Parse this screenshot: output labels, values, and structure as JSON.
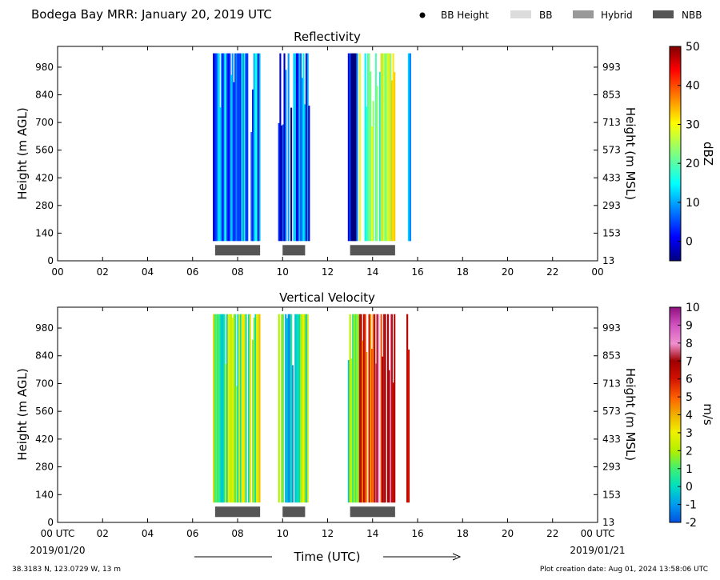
{
  "header": {
    "title": "Bodega Bay MRR:  January 20, 2019 UTC",
    "legend": [
      {
        "label": "BB Height",
        "marker": "dot",
        "color": "#000000"
      },
      {
        "label": "BB",
        "marker": "patch",
        "color": "#dcdcdc"
      },
      {
        "label": "Hybrid",
        "marker": "patch",
        "color": "#999999"
      },
      {
        "label": "NBB",
        "marker": "patch",
        "color": "#555555"
      }
    ]
  },
  "footer": {
    "location": "38.3183 N, 123.0729 W, 13 m",
    "creation": "Plot creation date: Aug 01, 2024 13:58:06 UTC",
    "xlabel": "Time (UTC)",
    "start_date": "2019/01/20",
    "end_date": "2019/01/21"
  },
  "chart_data": [
    {
      "type": "heatmap",
      "title": "Reflectivity",
      "ylabel": "Height (m AGL)",
      "ylabel_right": "Height (m MSL)",
      "xlim": [
        0,
        24
      ],
      "ylim": [
        0,
        1085
      ],
      "x_ticks": [
        "00",
        "02",
        "04",
        "06",
        "08",
        "10",
        "12",
        "14",
        "16",
        "18",
        "20",
        "22",
        "00"
      ],
      "y_ticks": [
        0,
        140,
        280,
        420,
        560,
        700,
        840,
        980
      ],
      "y_ticks_right": [
        13,
        153,
        293,
        433,
        573,
        713,
        853,
        993
      ],
      "colorbar": {
        "label": "dBZ",
        "min": -5,
        "max": 50,
        "ticks": [
          0,
          10,
          20,
          30,
          40,
          50
        ],
        "colormap": "jet"
      },
      "nbb_periods": [
        [
          7.0,
          9.0
        ],
        [
          10.0,
          11.0
        ],
        [
          13.0,
          15.0
        ]
      ],
      "data_height_range": [
        100,
        1050
      ],
      "precip_periods": [
        {
          "start": 6.9,
          "end": 9.0,
          "typical": 8
        },
        {
          "start": 9.8,
          "end": 11.2,
          "typical": 4
        },
        {
          "start": 12.9,
          "end": 13.4,
          "typical": 0
        },
        {
          "start": 13.4,
          "end": 15.0,
          "typical": 24
        },
        {
          "start": 15.5,
          "end": 15.7,
          "typical": 4
        }
      ]
    },
    {
      "type": "heatmap",
      "title": "Vertical Velocity",
      "ylabel": "Height (m AGL)",
      "ylabel_right": "Height (m MSL)",
      "xlim": [
        0,
        24
      ],
      "ylim": [
        0,
        1085
      ],
      "x_ticks": [
        "00 UTC",
        "02",
        "04",
        "06",
        "08",
        "10",
        "12",
        "14",
        "16",
        "18",
        "20",
        "22",
        "00 UTC"
      ],
      "y_ticks": [
        0,
        140,
        280,
        420,
        560,
        700,
        840,
        980
      ],
      "y_ticks_right": [
        13,
        153,
        293,
        433,
        573,
        713,
        853,
        993
      ],
      "colorbar": {
        "label": "m/s",
        "min": -2,
        "max": 10,
        "ticks": [
          -2,
          -1,
          0,
          1,
          2,
          3,
          4,
          5,
          6,
          7,
          8,
          9,
          10
        ],
        "colormap": "velocity"
      },
      "nbb_periods": [
        [
          7.0,
          9.0
        ],
        [
          10.0,
          11.0
        ],
        [
          13.0,
          15.0
        ]
      ],
      "data_height_range": [
        100,
        1050
      ],
      "precip_periods": [
        {
          "start": 6.9,
          "end": 9.0,
          "typical": 1.8
        },
        {
          "start": 9.8,
          "end": 11.2,
          "typical": 1.0
        },
        {
          "start": 12.9,
          "end": 13.4,
          "typical": 0.8
        },
        {
          "start": 13.4,
          "end": 15.0,
          "typical": 6.0
        },
        {
          "start": 15.5,
          "end": 15.7,
          "typical": 5.5
        }
      ]
    }
  ]
}
